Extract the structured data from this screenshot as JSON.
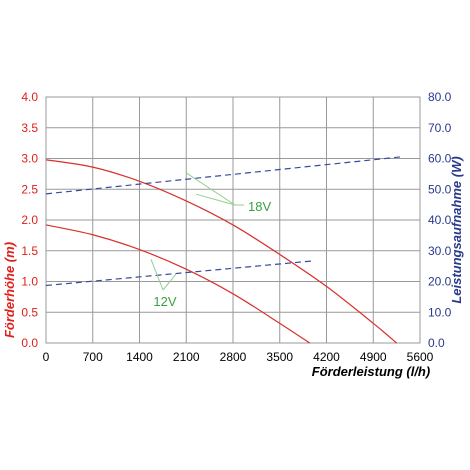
{
  "chart_data": {
    "type": "line",
    "xlabel": "Förderleistung (l/h)",
    "ylabel_left": "Förderhöhe (m)",
    "ylabel_right": "Leistungsaufnahme (W)",
    "x_ticks": [
      "0",
      "700",
      "1400",
      "2100",
      "2800",
      "3500",
      "4200",
      "4900",
      "5600"
    ],
    "y_left_ticks": [
      "0.0",
      "0.5",
      "1.0",
      "1.5",
      "2.0",
      "2.5",
      "3.0",
      "3.5",
      "4.0"
    ],
    "y_right_ticks": [
      "0.0",
      "10.0",
      "20.0",
      "30.0",
      "40.0",
      "50.0",
      "60.0",
      "70.0",
      "80.0"
    ],
    "xlim": [
      0,
      5600
    ],
    "ylim_left": [
      0,
      4.0
    ],
    "ylim_right": [
      0,
      80
    ],
    "grid": true,
    "colors": {
      "head": "#d9302c",
      "power": "#3a4a9c",
      "annotation": "#3aa040",
      "grid": "#999999",
      "left_axis": "#e0201c",
      "right_axis": "#2a3a8c"
    },
    "series": [
      {
        "name": "18V",
        "axis": "left",
        "style": "solid",
        "x": [
          0,
          700,
          1400,
          2100,
          2800,
          3500,
          4200,
          4900,
          5250
        ],
        "y": [
          2.98,
          2.86,
          2.63,
          2.31,
          1.92,
          1.44,
          0.92,
          0.32,
          0.0
        ]
      },
      {
        "name": "12V",
        "axis": "left",
        "style": "solid",
        "x": [
          0,
          700,
          1400,
          2100,
          2800,
          3500,
          3950
        ],
        "y": [
          1.92,
          1.76,
          1.52,
          1.2,
          0.8,
          0.32,
          0.0
        ]
      },
      {
        "name": "18V",
        "axis": "right",
        "style": "dashed",
        "x": [
          0,
          5300
        ],
        "y": [
          48.5,
          60.5
        ]
      },
      {
        "name": "12V",
        "axis": "right",
        "style": "dashed",
        "x": [
          0,
          4000
        ],
        "y": [
          18.7,
          26.7
        ]
      }
    ],
    "annotations": [
      {
        "text": "18V"
      },
      {
        "text": "12V"
      }
    ]
  }
}
